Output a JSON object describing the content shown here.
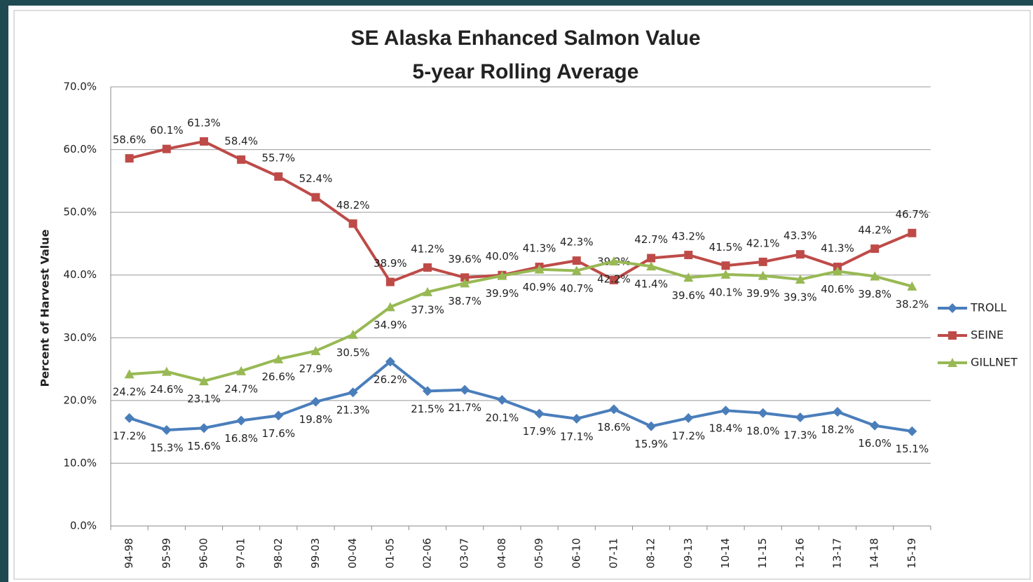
{
  "chart_data": {
    "type": "line",
    "title": "SE Alaska Enhanced Salmon Value",
    "subtitle": "5-year Rolling Average",
    "y_label": "Percent of Harvest Value",
    "categories": [
      "94-98",
      "95-99",
      "96-00",
      "97-01",
      "98-02",
      "99-03",
      "00-04",
      "01-05",
      "02-06",
      "03-07",
      "04-08",
      "05-09",
      "06-10",
      "07-11",
      "08-12",
      "09-13",
      "10-14",
      "11-15",
      "12-16",
      "13-17",
      "14-18",
      "15-19"
    ],
    "ylim": [
      0,
      70
    ],
    "yticks": [
      {
        "value": 0,
        "label": "0.0%"
      },
      {
        "value": 10,
        "label": "10.0%"
      },
      {
        "value": 20,
        "label": "20.0%"
      },
      {
        "value": 30,
        "label": "30.0%"
      },
      {
        "value": 40,
        "label": "40.0%"
      },
      {
        "value": 50,
        "label": "50.0%"
      },
      {
        "value": 60,
        "label": "60.0%"
      },
      {
        "value": 70,
        "label": "70.0%"
      }
    ],
    "grid": true,
    "legend": "right",
    "series": [
      {
        "name": "TROLL",
        "color": "#4a7ebb",
        "marker": "diamond",
        "values": [
          17.2,
          15.3,
          15.6,
          16.8,
          17.6,
          19.8,
          21.3,
          26.2,
          21.5,
          21.7,
          20.1,
          17.9,
          17.1,
          18.6,
          15.9,
          17.2,
          18.4,
          18.0,
          17.3,
          18.2,
          16.0,
          15.1
        ],
        "value_labels": [
          "17.2%",
          "15.3%",
          "15.6%",
          "16.8%",
          "17.6%",
          "19.8%",
          "21.3%",
          "26.2%",
          "21.5%",
          "21.7%",
          "20.1%",
          "17.9%",
          "17.1%",
          "18.6%",
          "15.9%",
          "17.2%",
          "18.4%",
          "18.0%",
          "17.3%",
          "18.2%",
          "16.0%",
          "15.1%"
        ]
      },
      {
        "name": "SEINE",
        "color": "#be4b48",
        "marker": "square",
        "values": [
          58.6,
          60.1,
          61.3,
          58.4,
          55.7,
          52.4,
          48.2,
          38.9,
          41.2,
          39.6,
          40.0,
          41.3,
          42.3,
          39.2,
          42.7,
          43.2,
          41.5,
          42.1,
          43.3,
          41.3,
          44.2,
          46.7
        ],
        "value_labels": [
          "58.6%",
          "60.1%",
          "61.3%",
          "58.4%",
          "55.7%",
          "52.4%",
          "48.2%",
          "38.9%",
          "41.2%",
          "39.6%",
          "40.0%",
          "41.3%",
          "42.3%",
          "39.2%",
          "42.7%",
          "43.2%",
          "41.5%",
          "42.1%",
          "43.3%",
          "41.3%",
          "44.2%",
          "46.7%"
        ]
      },
      {
        "name": "GILLNET",
        "color": "#98b954",
        "marker": "triangle",
        "values": [
          24.2,
          24.6,
          23.1,
          24.7,
          26.6,
          27.9,
          30.5,
          34.9,
          37.3,
          38.7,
          39.9,
          40.9,
          40.7,
          42.2,
          41.4,
          39.6,
          40.1,
          39.9,
          39.3,
          40.6,
          39.8,
          38.2
        ],
        "value_labels": [
          "24.2%",
          "24.6%",
          "23.1%",
          "24.7%",
          "26.6%",
          "27.9%",
          "30.5%",
          "34.9%",
          "37.3%",
          "38.7%",
          "39.9%",
          "40.9%",
          "40.7%",
          "42.2%",
          "41.4%",
          "39.6%",
          "40.1%",
          "39.9%",
          "39.3%",
          "40.6%",
          "39.8%",
          "38.2%"
        ]
      }
    ]
  }
}
